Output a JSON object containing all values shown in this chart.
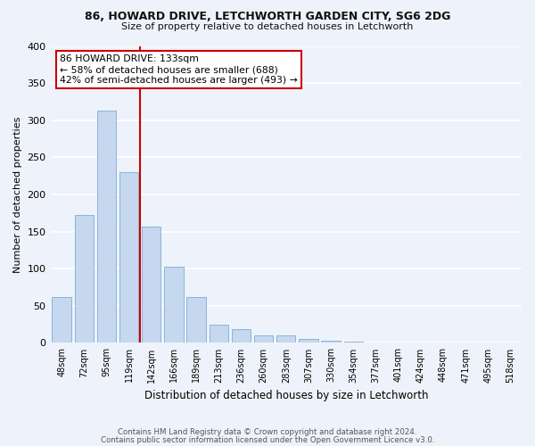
{
  "title1": "86, HOWARD DRIVE, LETCHWORTH GARDEN CITY, SG6 2DG",
  "title2": "Size of property relative to detached houses in Letchworth",
  "xlabel": "Distribution of detached houses by size in Letchworth",
  "ylabel": "Number of detached properties",
  "categories": [
    "48sqm",
    "72sqm",
    "95sqm",
    "119sqm",
    "142sqm",
    "166sqm",
    "189sqm",
    "213sqm",
    "236sqm",
    "260sqm",
    "283sqm",
    "307sqm",
    "330sqm",
    "354sqm",
    "377sqm",
    "401sqm",
    "424sqm",
    "448sqm",
    "471sqm",
    "495sqm",
    "518sqm"
  ],
  "values": [
    62,
    172,
    313,
    230,
    157,
    103,
    62,
    25,
    18,
    10,
    10,
    5,
    3,
    2,
    1,
    1,
    1,
    0,
    0,
    1,
    1
  ],
  "bar_color": "#c5d8ef",
  "bar_edge_color": "#7aafd4",
  "vline_color": "#cc0000",
  "vline_pos": 3.5,
  "annotation_text": "86 HOWARD DRIVE: 133sqm\n← 58% of detached houses are smaller (688)\n42% of semi-detached houses are larger (493) →",
  "annotation_box_color": "#ffffff",
  "annotation_box_edge": "#cc0000",
  "background_color": "#eef2fa",
  "grid_color": "#ffffff",
  "footer1": "Contains HM Land Registry data © Crown copyright and database right 2024.",
  "footer2": "Contains public sector information licensed under the Open Government Licence v3.0.",
  "ylim": [
    0,
    400
  ],
  "yticks": [
    0,
    50,
    100,
    150,
    200,
    250,
    300,
    350,
    400
  ]
}
